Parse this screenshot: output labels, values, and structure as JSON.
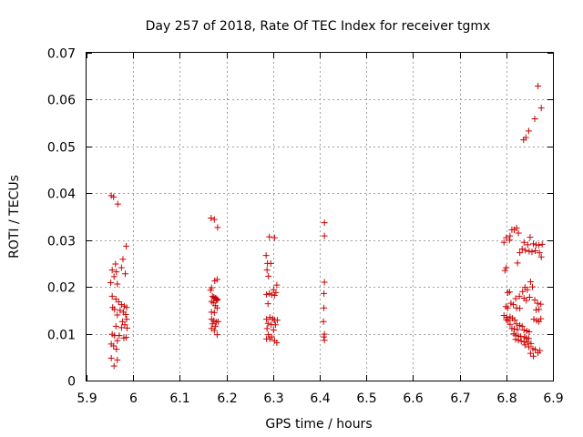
{
  "chart_data": {
    "type": "scatter",
    "title": "Day 257 of 2018, Rate Of TEC Index for receiver tgmx",
    "xlabel": "GPS time / hours",
    "ylabel": "ROTI / TECUs",
    "xlim": [
      5.9,
      6.9
    ],
    "ylim": [
      0,
      0.07
    ],
    "xticks": [
      5.9,
      6.0,
      6.1,
      6.2,
      6.3,
      6.4,
      6.5,
      6.6,
      6.7,
      6.8,
      6.9
    ],
    "xtick_labels": [
      "5.9",
      "6",
      "6.1",
      "6.2",
      "6.3",
      "6.4",
      "6.5",
      "6.6",
      "6.7",
      "6.8",
      "6.9"
    ],
    "yticks": [
      0,
      0.01,
      0.02,
      0.03,
      0.04,
      0.05,
      0.06,
      0.07
    ],
    "ytick_labels": [
      "0",
      "0.01",
      "0.02",
      "0.03",
      "0.04",
      "0.05",
      "0.06",
      "0.07"
    ],
    "grid": true,
    "marker": "plus",
    "color": "#cc0000",
    "points": [
      [
        5.953,
        0.0395
      ],
      [
        5.958,
        0.0392
      ],
      [
        5.967,
        0.0377
      ],
      [
        5.985,
        0.0287
      ],
      [
        5.978,
        0.0259
      ],
      [
        5.962,
        0.0249
      ],
      [
        5.975,
        0.0241
      ],
      [
        5.955,
        0.0236
      ],
      [
        5.964,
        0.0232
      ],
      [
        5.983,
        0.0228
      ],
      [
        5.959,
        0.0222
      ],
      [
        5.952,
        0.0209
      ],
      [
        5.966,
        0.0206
      ],
      [
        5.955,
        0.018
      ],
      [
        5.963,
        0.0174
      ],
      [
        5.969,
        0.0168
      ],
      [
        5.975,
        0.0162
      ],
      [
        5.981,
        0.0159
      ],
      [
        5.986,
        0.0156
      ],
      [
        5.956,
        0.0156
      ],
      [
        5.96,
        0.0152
      ],
      [
        5.972,
        0.015
      ],
      [
        5.979,
        0.0146
      ],
      [
        5.984,
        0.0141
      ],
      [
        5.966,
        0.014
      ],
      [
        5.986,
        0.0131
      ],
      [
        5.977,
        0.0126
      ],
      [
        5.982,
        0.0119
      ],
      [
        5.963,
        0.0116
      ],
      [
        5.975,
        0.0113
      ],
      [
        5.987,
        0.0112
      ],
      [
        5.955,
        0.0099
      ],
      [
        5.96,
        0.0096
      ],
      [
        5.97,
        0.0096
      ],
      [
        5.98,
        0.0091
      ],
      [
        5.985,
        0.0092
      ],
      [
        5.966,
        0.0085
      ],
      [
        5.953,
        0.0078
      ],
      [
        5.958,
        0.0074
      ],
      [
        5.964,
        0.0067
      ],
      [
        5.953,
        0.0048
      ],
      [
        5.966,
        0.0044
      ],
      [
        5.959,
        0.0031
      ],
      [
        6.167,
        0.0347
      ],
      [
        6.174,
        0.0344
      ],
      [
        6.181,
        0.0327
      ],
      [
        6.18,
        0.0216
      ],
      [
        6.175,
        0.0213
      ],
      [
        6.168,
        0.0198
      ],
      [
        6.166,
        0.0193
      ],
      [
        6.17,
        0.018
      ],
      [
        6.173,
        0.0178
      ],
      [
        6.176,
        0.0176
      ],
      [
        6.178,
        0.0175
      ],
      [
        6.181,
        0.0173
      ],
      [
        6.179,
        0.0171
      ],
      [
        6.168,
        0.0169
      ],
      [
        6.172,
        0.0166
      ],
      [
        6.176,
        0.016
      ],
      [
        6.18,
        0.0155
      ],
      [
        6.168,
        0.0146
      ],
      [
        6.174,
        0.0145
      ],
      [
        6.168,
        0.0131
      ],
      [
        6.173,
        0.0128
      ],
      [
        6.178,
        0.0125
      ],
      [
        6.182,
        0.0126
      ],
      [
        6.17,
        0.0121
      ],
      [
        6.176,
        0.0116
      ],
      [
        6.168,
        0.0111
      ],
      [
        6.174,
        0.0107
      ],
      [
        6.18,
        0.0098
      ],
      [
        6.292,
        0.0307
      ],
      [
        6.303,
        0.0305
      ],
      [
        6.285,
        0.0267
      ],
      [
        6.288,
        0.025
      ],
      [
        6.295,
        0.025
      ],
      [
        6.287,
        0.0236
      ],
      [
        6.29,
        0.0223
      ],
      [
        6.308,
        0.0204
      ],
      [
        6.301,
        0.0194
      ],
      [
        6.306,
        0.0188
      ],
      [
        6.292,
        0.0186
      ],
      [
        6.286,
        0.0184
      ],
      [
        6.297,
        0.0183
      ],
      [
        6.303,
        0.0182
      ],
      [
        6.289,
        0.0164
      ],
      [
        6.293,
        0.0135
      ],
      [
        6.299,
        0.0132
      ],
      [
        6.286,
        0.0131
      ],
      [
        6.303,
        0.0129
      ],
      [
        6.309,
        0.0129
      ],
      [
        6.289,
        0.0122
      ],
      [
        6.296,
        0.0119
      ],
      [
        6.305,
        0.0119
      ],
      [
        6.287,
        0.0111
      ],
      [
        6.301,
        0.0108
      ],
      [
        6.29,
        0.0098
      ],
      [
        6.297,
        0.0093
      ],
      [
        6.286,
        0.0089
      ],
      [
        6.293,
        0.0089
      ],
      [
        6.303,
        0.0085
      ],
      [
        6.308,
        0.0081
      ],
      [
        6.41,
        0.0337
      ],
      [
        6.41,
        0.0309
      ],
      [
        6.41,
        0.021
      ],
      [
        6.409,
        0.0186
      ],
      [
        6.409,
        0.0155
      ],
      [
        6.408,
        0.0126
      ],
      [
        6.41,
        0.0099
      ],
      [
        6.409,
        0.0093
      ],
      [
        6.41,
        0.0086
      ],
      [
        6.868,
        0.0629
      ],
      [
        6.875,
        0.0582
      ],
      [
        6.861,
        0.0559
      ],
      [
        6.848,
        0.0533
      ],
      [
        6.842,
        0.0519
      ],
      [
        6.837,
        0.0514
      ],
      [
        6.808,
        0.0309
      ],
      [
        6.8,
        0.0305
      ],
      [
        6.807,
        0.03
      ],
      [
        6.795,
        0.0295
      ],
      [
        6.822,
        0.0326
      ],
      [
        6.817,
        0.0322
      ],
      [
        6.826,
        0.0315
      ],
      [
        6.812,
        0.0322
      ],
      [
        6.851,
        0.0306
      ],
      [
        6.838,
        0.0295
      ],
      [
        6.846,
        0.029
      ],
      [
        6.858,
        0.0292
      ],
      [
        6.864,
        0.029
      ],
      [
        6.87,
        0.0289
      ],
      [
        6.877,
        0.0291
      ],
      [
        6.834,
        0.0281
      ],
      [
        6.841,
        0.0278
      ],
      [
        6.849,
        0.0276
      ],
      [
        6.855,
        0.0275
      ],
      [
        6.862,
        0.0277
      ],
      [
        6.871,
        0.0273
      ],
      [
        6.829,
        0.0273
      ],
      [
        6.875,
        0.0264
      ],
      [
        6.824,
        0.0251
      ],
      [
        6.797,
        0.0235
      ],
      [
        6.8,
        0.0241
      ],
      [
        6.852,
        0.0211
      ],
      [
        6.856,
        0.02
      ],
      [
        6.84,
        0.0199
      ],
      [
        6.845,
        0.0194
      ],
      [
        6.835,
        0.019
      ],
      [
        6.803,
        0.0188
      ],
      [
        6.807,
        0.0189
      ],
      [
        6.828,
        0.018
      ],
      [
        6.82,
        0.0175
      ],
      [
        6.838,
        0.0176
      ],
      [
        6.843,
        0.0171
      ],
      [
        6.85,
        0.0178
      ],
      [
        6.861,
        0.0172
      ],
      [
        6.867,
        0.0165
      ],
      [
        6.874,
        0.0163
      ],
      [
        6.815,
        0.0162
      ],
      [
        6.81,
        0.0165
      ],
      [
        6.822,
        0.0155
      ],
      [
        6.799,
        0.0158
      ],
      [
        6.803,
        0.0155
      ],
      [
        6.829,
        0.0154
      ],
      [
        6.864,
        0.0151
      ],
      [
        6.87,
        0.0152
      ],
      [
        6.795,
        0.0139
      ],
      [
        6.801,
        0.0135
      ],
      [
        6.808,
        0.0136
      ],
      [
        6.813,
        0.0133
      ],
      [
        6.8,
        0.013
      ],
      [
        6.804,
        0.0128
      ],
      [
        6.818,
        0.0129
      ],
      [
        6.822,
        0.0121
      ],
      [
        6.829,
        0.0118
      ],
      [
        6.834,
        0.0116
      ],
      [
        6.859,
        0.0131
      ],
      [
        6.865,
        0.0128
      ],
      [
        6.87,
        0.0126
      ],
      [
        6.874,
        0.0132
      ],
      [
        6.808,
        0.012
      ],
      [
        6.812,
        0.0111
      ],
      [
        6.817,
        0.011
      ],
      [
        6.824,
        0.0109
      ],
      [
        6.838,
        0.0108
      ],
      [
        6.844,
        0.0106
      ],
      [
        6.849,
        0.0104
      ],
      [
        6.816,
        0.01
      ],
      [
        6.82,
        0.0097
      ],
      [
        6.826,
        0.0095
      ],
      [
        6.831,
        0.0094
      ],
      [
        6.839,
        0.0093
      ],
      [
        6.843,
        0.0091
      ],
      [
        6.848,
        0.009
      ],
      [
        6.82,
        0.0088
      ],
      [
        6.826,
        0.0086
      ],
      [
        6.832,
        0.0084
      ],
      [
        6.838,
        0.0083
      ],
      [
        6.845,
        0.0082
      ],
      [
        6.853,
        0.0079
      ],
      [
        6.84,
        0.0076
      ],
      [
        6.848,
        0.0072
      ],
      [
        6.857,
        0.0068
      ],
      [
        6.862,
        0.0066
      ],
      [
        6.872,
        0.0064
      ],
      [
        6.868,
        0.0059
      ],
      [
        6.852,
        0.0058
      ],
      [
        6.858,
        0.0052
      ]
    ]
  }
}
